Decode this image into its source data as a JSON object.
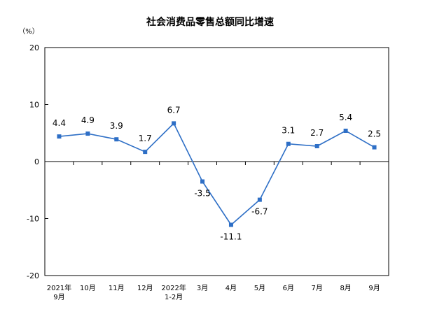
{
  "chart_data": {
    "type": "line",
    "title": "社会消费品零售总额同比增速",
    "unit": "（%）",
    "ylim": [
      -20,
      20
    ],
    "yticks": [
      "20",
      "10",
      "0",
      "-10",
      "-20"
    ],
    "grid": false,
    "categories": [
      [
        "2021年",
        "9月"
      ],
      [
        "10月"
      ],
      [
        "11月"
      ],
      [
        "12月"
      ],
      [
        "2022年",
        "1-2月"
      ],
      [
        "3月"
      ],
      [
        "4月"
      ],
      [
        "5月"
      ],
      [
        "6月"
      ],
      [
        "7月"
      ],
      [
        "8月"
      ],
      [
        "9月"
      ]
    ],
    "series": [
      {
        "values": [
          4.4,
          4.9,
          3.9,
          1.7,
          6.7,
          -3.5,
          -11.1,
          -6.7,
          3.1,
          2.7,
          5.4,
          2.5
        ],
        "labels": [
          "4.4",
          "4.9",
          "3.9",
          "1.7",
          "6.7",
          "-3.5",
          "-11.1",
          "-6.7",
          "3.1",
          "2.7",
          "5.4",
          "2.5"
        ],
        "color": "#2e6fc6"
      }
    ]
  }
}
